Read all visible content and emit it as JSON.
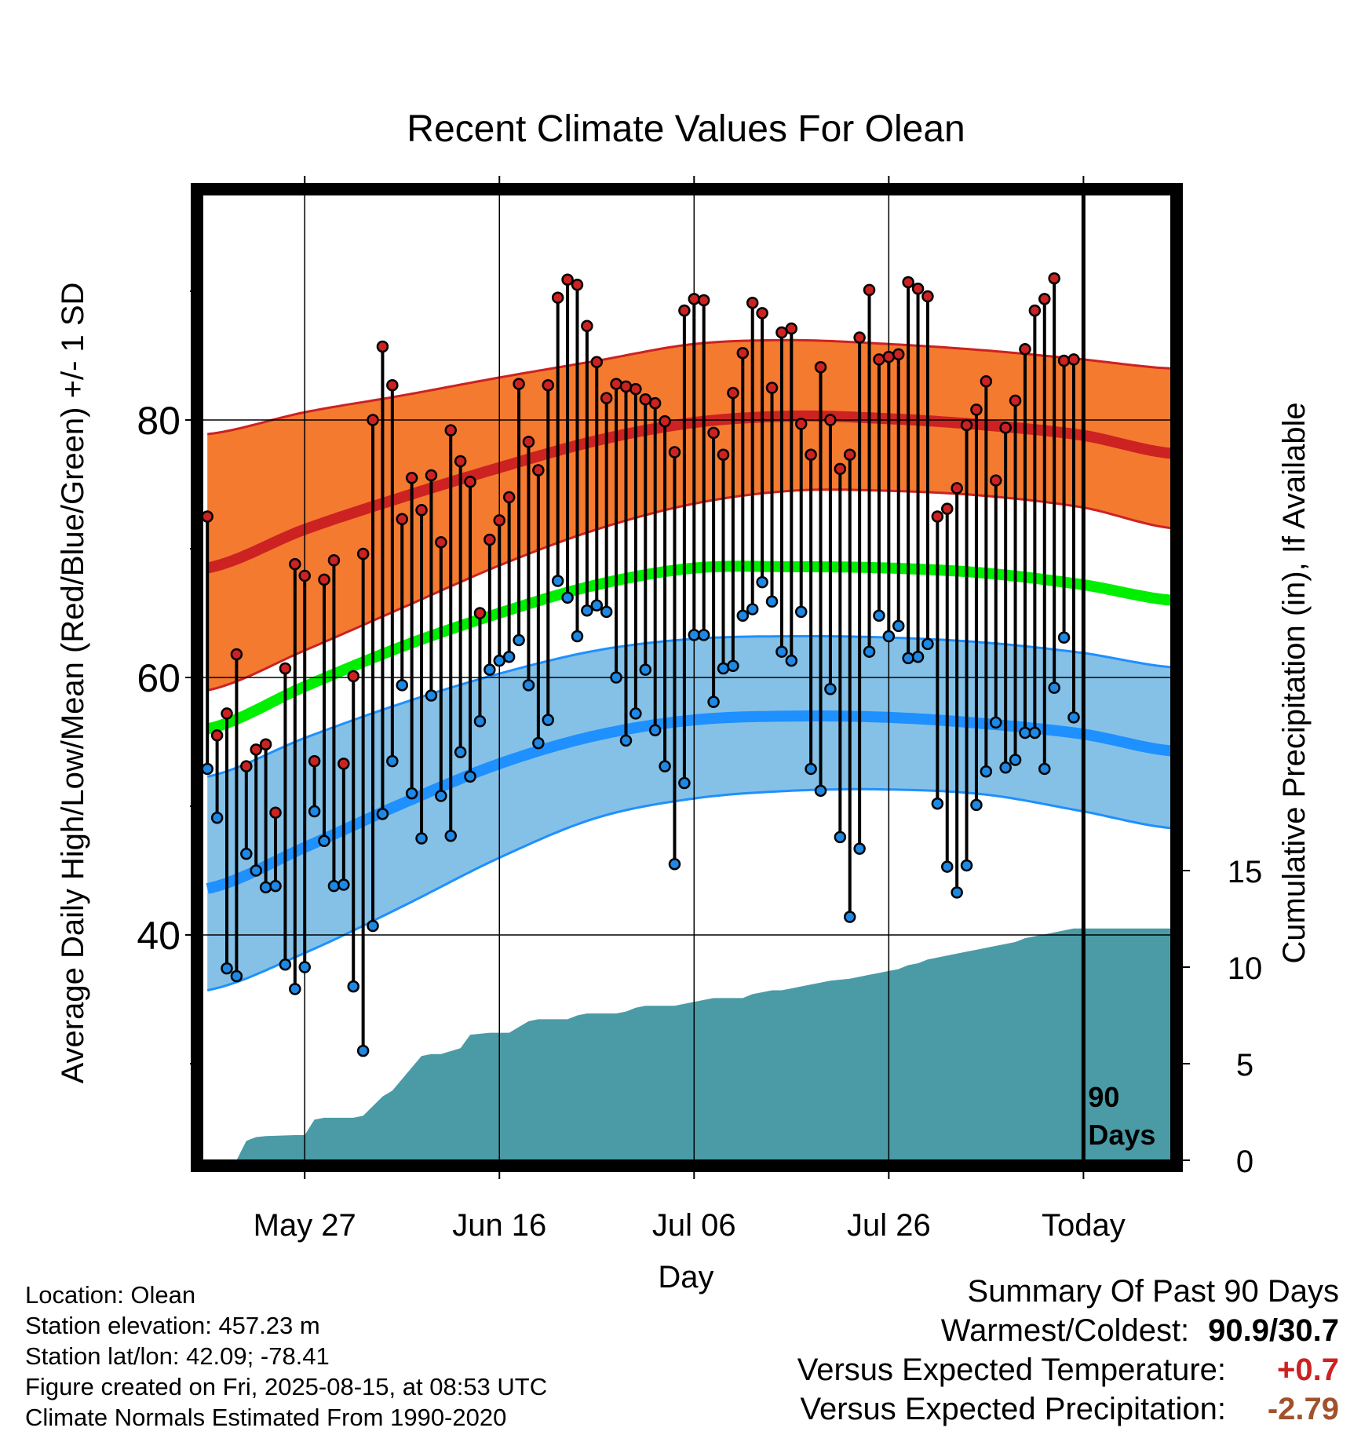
{
  "title": "Recent Climate Values For Olean",
  "chart_data": {
    "type": "line",
    "title": "Recent Climate Values For Olean",
    "xlabel": "Day",
    "ylabel": "Average Daily High/Low/Mean (Red/Blue/Green) +/- 1 SD",
    "y2label": "Cumulative Precipitation (in), If Available",
    "x_ticks": [
      "May 27",
      "Jun 16",
      "Jul 06",
      "Jul 26",
      "Today"
    ],
    "x_tick_days": [
      -80,
      -60,
      -40,
      -20,
      0
    ],
    "y_ticks": [
      40,
      60,
      80
    ],
    "ylim": [
      22.5,
      97.5
    ],
    "y2_ticks": [
      0,
      5,
      10,
      15
    ],
    "y2lim": [
      0,
      50
    ],
    "xlim_days": [
      -90.5,
      9
    ],
    "grid": true,
    "today_marker_label": [
      "90",
      "Days"
    ],
    "normals": {
      "days": [
        -90,
        -80,
        -70,
        -60,
        -50,
        -40,
        -30,
        -20,
        -10,
        0,
        9
      ],
      "high_mean": [
        68.5,
        71.5,
        74.0,
        76.3,
        78.4,
        79.8,
        80.3,
        80.1,
        79.6,
        78.8,
        77.4
      ],
      "high_sd_upper": [
        78.9,
        80.6,
        81.9,
        83.3,
        84.6,
        85.9,
        86.2,
        85.9,
        85.4,
        84.7,
        84.0
      ],
      "high_sd_lower": [
        59.0,
        62.1,
        65.4,
        68.7,
        71.5,
        73.5,
        74.5,
        74.5,
        74.1,
        73.2,
        71.6
      ],
      "mean": [
        56.0,
        59.3,
        62.4,
        65.0,
        67.2,
        68.5,
        68.6,
        68.5,
        68.1,
        67.2,
        66.0
      ],
      "low_mean": [
        43.6,
        46.8,
        50.2,
        53.3,
        55.5,
        56.7,
        57.0,
        56.9,
        56.4,
        55.6,
        54.3
      ],
      "low_sd_upper": [
        52.3,
        55.3,
        58.0,
        60.3,
        62.1,
        63.0,
        63.2,
        63.1,
        62.7,
        61.9,
        60.8
      ],
      "low_sd_lower": [
        35.7,
        38.6,
        42.2,
        46.0,
        49.1,
        50.6,
        51.2,
        51.3,
        50.9,
        49.6,
        48.3
      ]
    },
    "observed": {
      "start_day": -90,
      "highs": [
        72.5,
        55.5,
        57.2,
        61.8,
        53.1,
        54.4,
        54.8,
        49.5,
        60.7,
        68.8,
        67.9,
        53.5,
        67.6,
        69.1,
        53.3,
        60.1,
        69.6,
        80.0,
        85.7,
        82.7,
        72.3,
        75.5,
        73.0,
        75.7,
        70.5,
        79.2,
        76.8,
        75.2,
        65.0,
        70.7,
        72.2,
        74.0,
        82.8,
        78.3,
        76.1,
        82.7,
        89.5,
        90.9,
        90.5,
        87.3,
        84.5,
        81.7,
        82.8,
        82.6,
        82.4,
        81.6,
        81.3,
        79.9,
        77.5,
        88.5,
        89.4,
        89.3,
        79.0,
        77.3,
        82.1,
        85.2,
        89.1,
        88.3,
        82.5,
        86.8,
        87.1,
        79.7,
        77.3,
        84.1,
        80.0,
        76.2,
        77.3,
        86.4,
        90.1,
        84.7,
        84.9,
        85.1,
        90.7,
        90.2,
        89.6,
        72.5,
        73.1,
        74.7,
        79.6,
        80.8,
        83.0,
        75.3,
        79.4,
        81.5,
        85.5,
        88.5,
        89.4,
        91.0,
        84.6,
        84.7
      ],
      "lows": [
        52.9,
        49.1,
        37.4,
        36.8,
        46.3,
        45.0,
        43.7,
        43.8,
        37.7,
        35.8,
        37.5,
        49.6,
        47.3,
        43.8,
        43.9,
        36.0,
        31.0,
        40.7,
        49.4,
        53.5,
        59.4,
        51.0,
        47.5,
        58.6,
        50.8,
        47.7,
        54.2,
        52.3,
        56.6,
        60.6,
        61.3,
        61.6,
        62.9,
        59.4,
        54.9,
        56.7,
        67.5,
        66.2,
        63.2,
        65.2,
        65.6,
        65.1,
        60.0,
        55.1,
        57.2,
        60.6,
        55.9,
        53.1,
        45.5,
        51.8,
        63.3,
        63.3,
        58.1,
        60.7,
        60.9,
        64.8,
        65.3,
        67.4,
        65.9,
        62.0,
        61.3,
        65.1,
        52.9,
        51.2,
        59.1,
        47.6,
        41.4,
        46.7,
        62.0,
        64.8,
        63.2,
        64.0,
        61.5,
        61.6,
        62.6,
        50.2,
        45.3,
        43.3,
        45.4,
        50.1,
        52.7,
        56.5,
        53.0,
        53.6,
        55.7,
        55.7,
        52.9,
        59.2,
        63.1,
        56.9
      ]
    },
    "precip_cumulative": {
      "days": [
        -90,
        -87,
        -86,
        -85,
        -84,
        -81,
        -80,
        -79,
        -78,
        -75,
        -74,
        -72,
        -71,
        -68,
        -67,
        -66,
        -64,
        -63,
        -61,
        -60,
        -59,
        -58,
        -57,
        -56,
        -53,
        -52,
        -51,
        -50,
        -48,
        -47,
        -46,
        -45,
        -42,
        -41,
        -40,
        -39,
        -38,
        -35,
        -34,
        -33,
        -32,
        -31,
        -30,
        -29,
        -28,
        -27,
        -26,
        -24,
        -23,
        -22,
        -21,
        -20,
        -19,
        -18,
        -17,
        -16,
        -15,
        -14,
        -13,
        -12,
        -11,
        -10,
        -9,
        -8,
        -7,
        -6,
        -5,
        -4,
        -3,
        -2,
        -1,
        0,
        9
      ],
      "values": [
        0,
        0,
        1.0,
        1.2,
        1.25,
        1.3,
        1.3,
        2.1,
        2.2,
        2.2,
        2.3,
        3.3,
        3.6,
        5.4,
        5.5,
        5.5,
        5.8,
        6.5,
        6.6,
        6.6,
        6.6,
        6.9,
        7.2,
        7.3,
        7.3,
        7.5,
        7.6,
        7.6,
        7.6,
        7.7,
        7.9,
        8.0,
        8.0,
        8.1,
        8.2,
        8.3,
        8.4,
        8.4,
        8.6,
        8.7,
        8.8,
        8.8,
        8.9,
        9.0,
        9.1,
        9.2,
        9.3,
        9.4,
        9.5,
        9.6,
        9.7,
        9.8,
        9.9,
        10.1,
        10.2,
        10.4,
        10.5,
        10.6,
        10.7,
        10.8,
        10.9,
        11.0,
        11.1,
        11.2,
        11.3,
        11.5,
        11.6,
        11.7,
        11.8,
        11.9,
        12.0,
        12.0,
        12.0
      ]
    }
  },
  "info": {
    "location": "Location: Olean",
    "elevation": "Station elevation: 457.23 m",
    "latlon": "Station lat/lon: 42.09; -78.41",
    "created": "Figure created on Fri, 2025-08-15, at 08:53 UTC",
    "normals": "Climate Normals Estimated From 1990-2020"
  },
  "summary": {
    "heading": "Summary Of Past 90 Days",
    "warmest_coldest_label": "Warmest/Coldest:",
    "warmest_coldest_value": "90.9/30.7",
    "temp_label": "Versus Expected Temperature:",
    "temp_value": "+0.7",
    "precip_label": "Versus Expected Precipitation:",
    "precip_value": "-2.79",
    "colors": {
      "temp_value": "#cc2222",
      "precip_value": "#a0522d"
    }
  },
  "colors": {
    "high_band": "#f47a30",
    "high_line": "#cc2222",
    "mean_line": "#00ee00",
    "low_band": "#85c1e6",
    "low_line": "#1e90ff",
    "precip": "#4a9ba6",
    "high_dot": "#cc2222",
    "low_dot": "#1e88e5"
  }
}
